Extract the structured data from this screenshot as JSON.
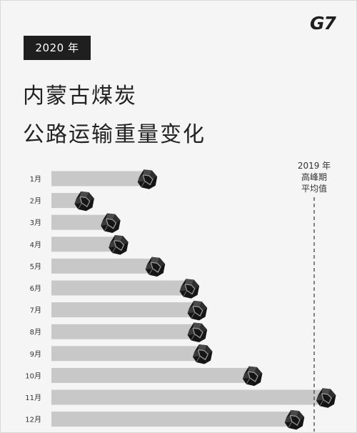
{
  "badge": "2020 年",
  "logo": "G7",
  "title": {
    "line1": "内蒙古煤炭",
    "line2": "公路运输重量变化"
  },
  "chart_data": {
    "type": "bar",
    "orientation": "horizontal",
    "categories": [
      "1月",
      "2月",
      "3月",
      "4月",
      "5月",
      "6月",
      "7月",
      "8月",
      "9月",
      "10月",
      "11月",
      "12月"
    ],
    "values": [
      0.36,
      0.12,
      0.22,
      0.25,
      0.39,
      0.52,
      0.55,
      0.55,
      0.57,
      0.76,
      1.04,
      0.92
    ],
    "xlim": [
      0,
      1.0
    ],
    "reference_line": {
      "value": 1.0,
      "label": [
        "2019 年",
        "高峰期",
        "平均值"
      ]
    },
    "bar_color": "#c8c8c8",
    "marker_icon": "coal-lump-icon",
    "grid": false
  }
}
